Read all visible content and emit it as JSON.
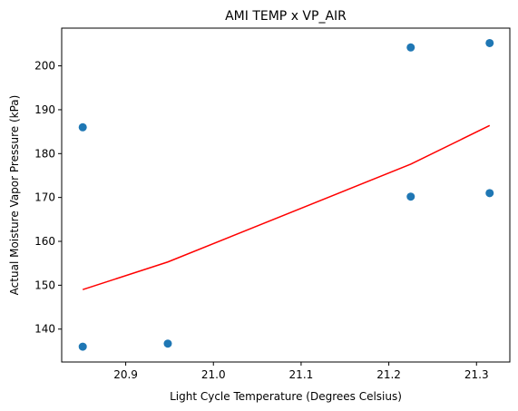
{
  "chart_data": {
    "type": "scatter",
    "title": "AMI TEMP x VP_AIR",
    "xlabel": "Light Cycle Temperature (Degrees Celsius)",
    "ylabel": "Actual Moisture Vapor Pressure (kPa)",
    "xlim": [
      20.827,
      21.338
    ],
    "ylim": [
      132.5,
      208.6
    ],
    "xticks": [
      20.9,
      21.0,
      21.1,
      21.2,
      21.3
    ],
    "xtick_labels": [
      "20.9",
      "21.0",
      "21.1",
      "21.2",
      "21.3"
    ],
    "yticks": [
      140,
      150,
      160,
      170,
      180,
      190,
      200
    ],
    "ytick_labels": [
      "140",
      "150",
      "160",
      "170",
      "180",
      "190",
      "200"
    ],
    "grid": false,
    "series": [
      {
        "type": "scatter",
        "color": "#1f77b4",
        "x": [
          20.851,
          20.851,
          20.948,
          21.225,
          21.225,
          21.315,
          21.315
        ],
        "y": [
          186.0,
          136.0,
          136.7,
          204.2,
          170.2,
          205.2,
          171.0
        ]
      },
      {
        "type": "line",
        "color": "#ff0000",
        "x": [
          20.851,
          20.948,
          21.225,
          21.315
        ],
        "y": [
          149.0,
          155.3,
          177.6,
          186.4
        ]
      }
    ]
  }
}
